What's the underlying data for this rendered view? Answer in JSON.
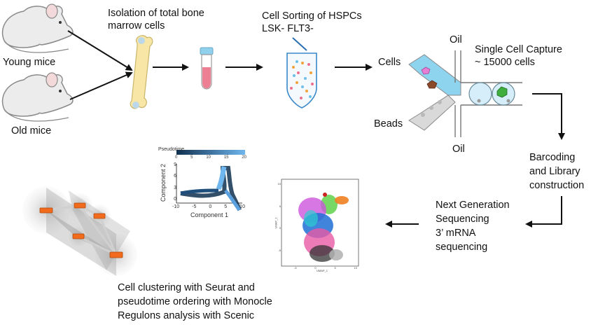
{
  "labels": {
    "young_mice": "Young mice",
    "old_mice": "Old mice",
    "isolation_line1": "Isolation of total bone",
    "isolation_line2": "marrow cells",
    "sorting_line1": "Cell Sorting of HSPCs",
    "sorting_line2": "LSK- FLT3-",
    "cells": "Cells",
    "beads": "Beads",
    "oil_top": "Oil",
    "oil_bottom": "Oil",
    "capture_line1": "Single Cell Capture",
    "capture_line2": "~ 15000 cells",
    "barcoding_line1": "Barcoding",
    "barcoding_line2": "and Library",
    "barcoding_line3": "construction",
    "ngs_line1": "Next Generation",
    "ngs_line2": "Sequencing",
    "ngs_line3": "3’ mRNA",
    "ngs_line4": "sequencing",
    "analysis_line1": "Cell clustering with Seurat and",
    "analysis_line2": "pseudotime ordering with Monocle",
    "analysis_line3": "Regulons analysis with Scenic"
  },
  "pseudotime_plot": {
    "legend_title": "Pseudotime",
    "legend_ticks": [
      "0",
      "5",
      "10",
      "15",
      "20"
    ],
    "xlabel": "Component 1",
    "ylabel": "Component 2",
    "x_ticks": [
      "-10",
      "-5",
      "0",
      "5",
      "10"
    ],
    "y_ticks": [
      "9",
      "6",
      "3",
      "0"
    ]
  },
  "umap_plot": {
    "xlabel": "UMAP_1",
    "ylabel": "UMAP_2",
    "x_ticks": [
      "-5",
      "0",
      "5",
      "10"
    ],
    "y_ticks": [
      "10",
      "5",
      "0",
      "-5"
    ]
  },
  "colors": {
    "arrow": "#111111",
    "mouse": "#e9e9e9",
    "bone": "#f7e6a5",
    "tube_liquid": "#ec7f94",
    "channel": "#8fd4ef",
    "pseudotime_dark": "#10304f",
    "pseudotime_light": "#6fb6ee",
    "network_node": "#f26b1d",
    "network_shade": "#9a9a9a"
  }
}
